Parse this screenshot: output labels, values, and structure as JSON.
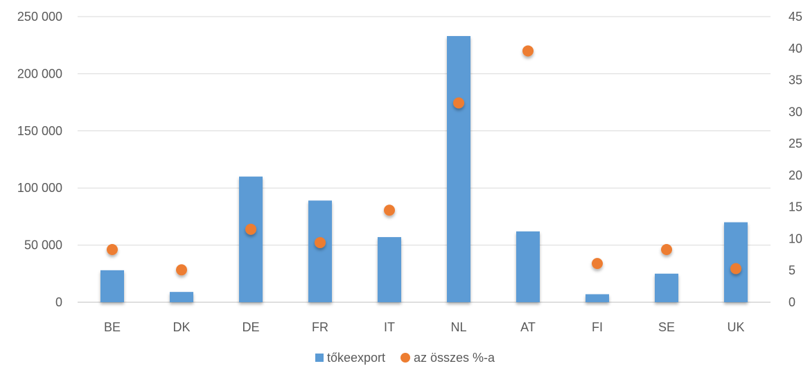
{
  "chart_data": {
    "type": "bar",
    "categories": [
      "BE",
      "DK",
      "DE",
      "FR",
      "IT",
      "NL",
      "AT",
      "FI",
      "SE",
      "UK"
    ],
    "series": [
      {
        "name": "tőkeexport",
        "type": "bar",
        "axis": "left",
        "color": "#5B9BD5",
        "values": [
          28000,
          9000,
          110000,
          89000,
          57000,
          233000,
          62000,
          7000,
          25000,
          70000
        ]
      },
      {
        "name": "az összes %-a",
        "type": "scatter",
        "axis": "right",
        "color": "#ED7D31",
        "values": [
          8.3,
          5.1,
          11.5,
          9.4,
          14.5,
          31.4,
          39.6,
          6.1,
          8.3,
          5.3
        ]
      }
    ],
    "y_left": {
      "lim": [
        0,
        250000
      ],
      "ticks": [
        0,
        50000,
        100000,
        150000,
        200000,
        250000
      ],
      "tick_labels": [
        "0",
        "50 000",
        "100 000",
        "150 000",
        "200 000",
        "250 000"
      ]
    },
    "y_right": {
      "lim": [
        0,
        45
      ],
      "ticks": [
        0,
        5,
        10,
        15,
        20,
        25,
        30,
        35,
        40,
        45
      ],
      "tick_labels": [
        "0",
        "5",
        "10",
        "15",
        "20",
        "25",
        "30",
        "35",
        "40",
        "45"
      ]
    },
    "grid": true,
    "legend": "bottom-center",
    "title": "",
    "xlabel": "",
    "ylabel": ""
  }
}
